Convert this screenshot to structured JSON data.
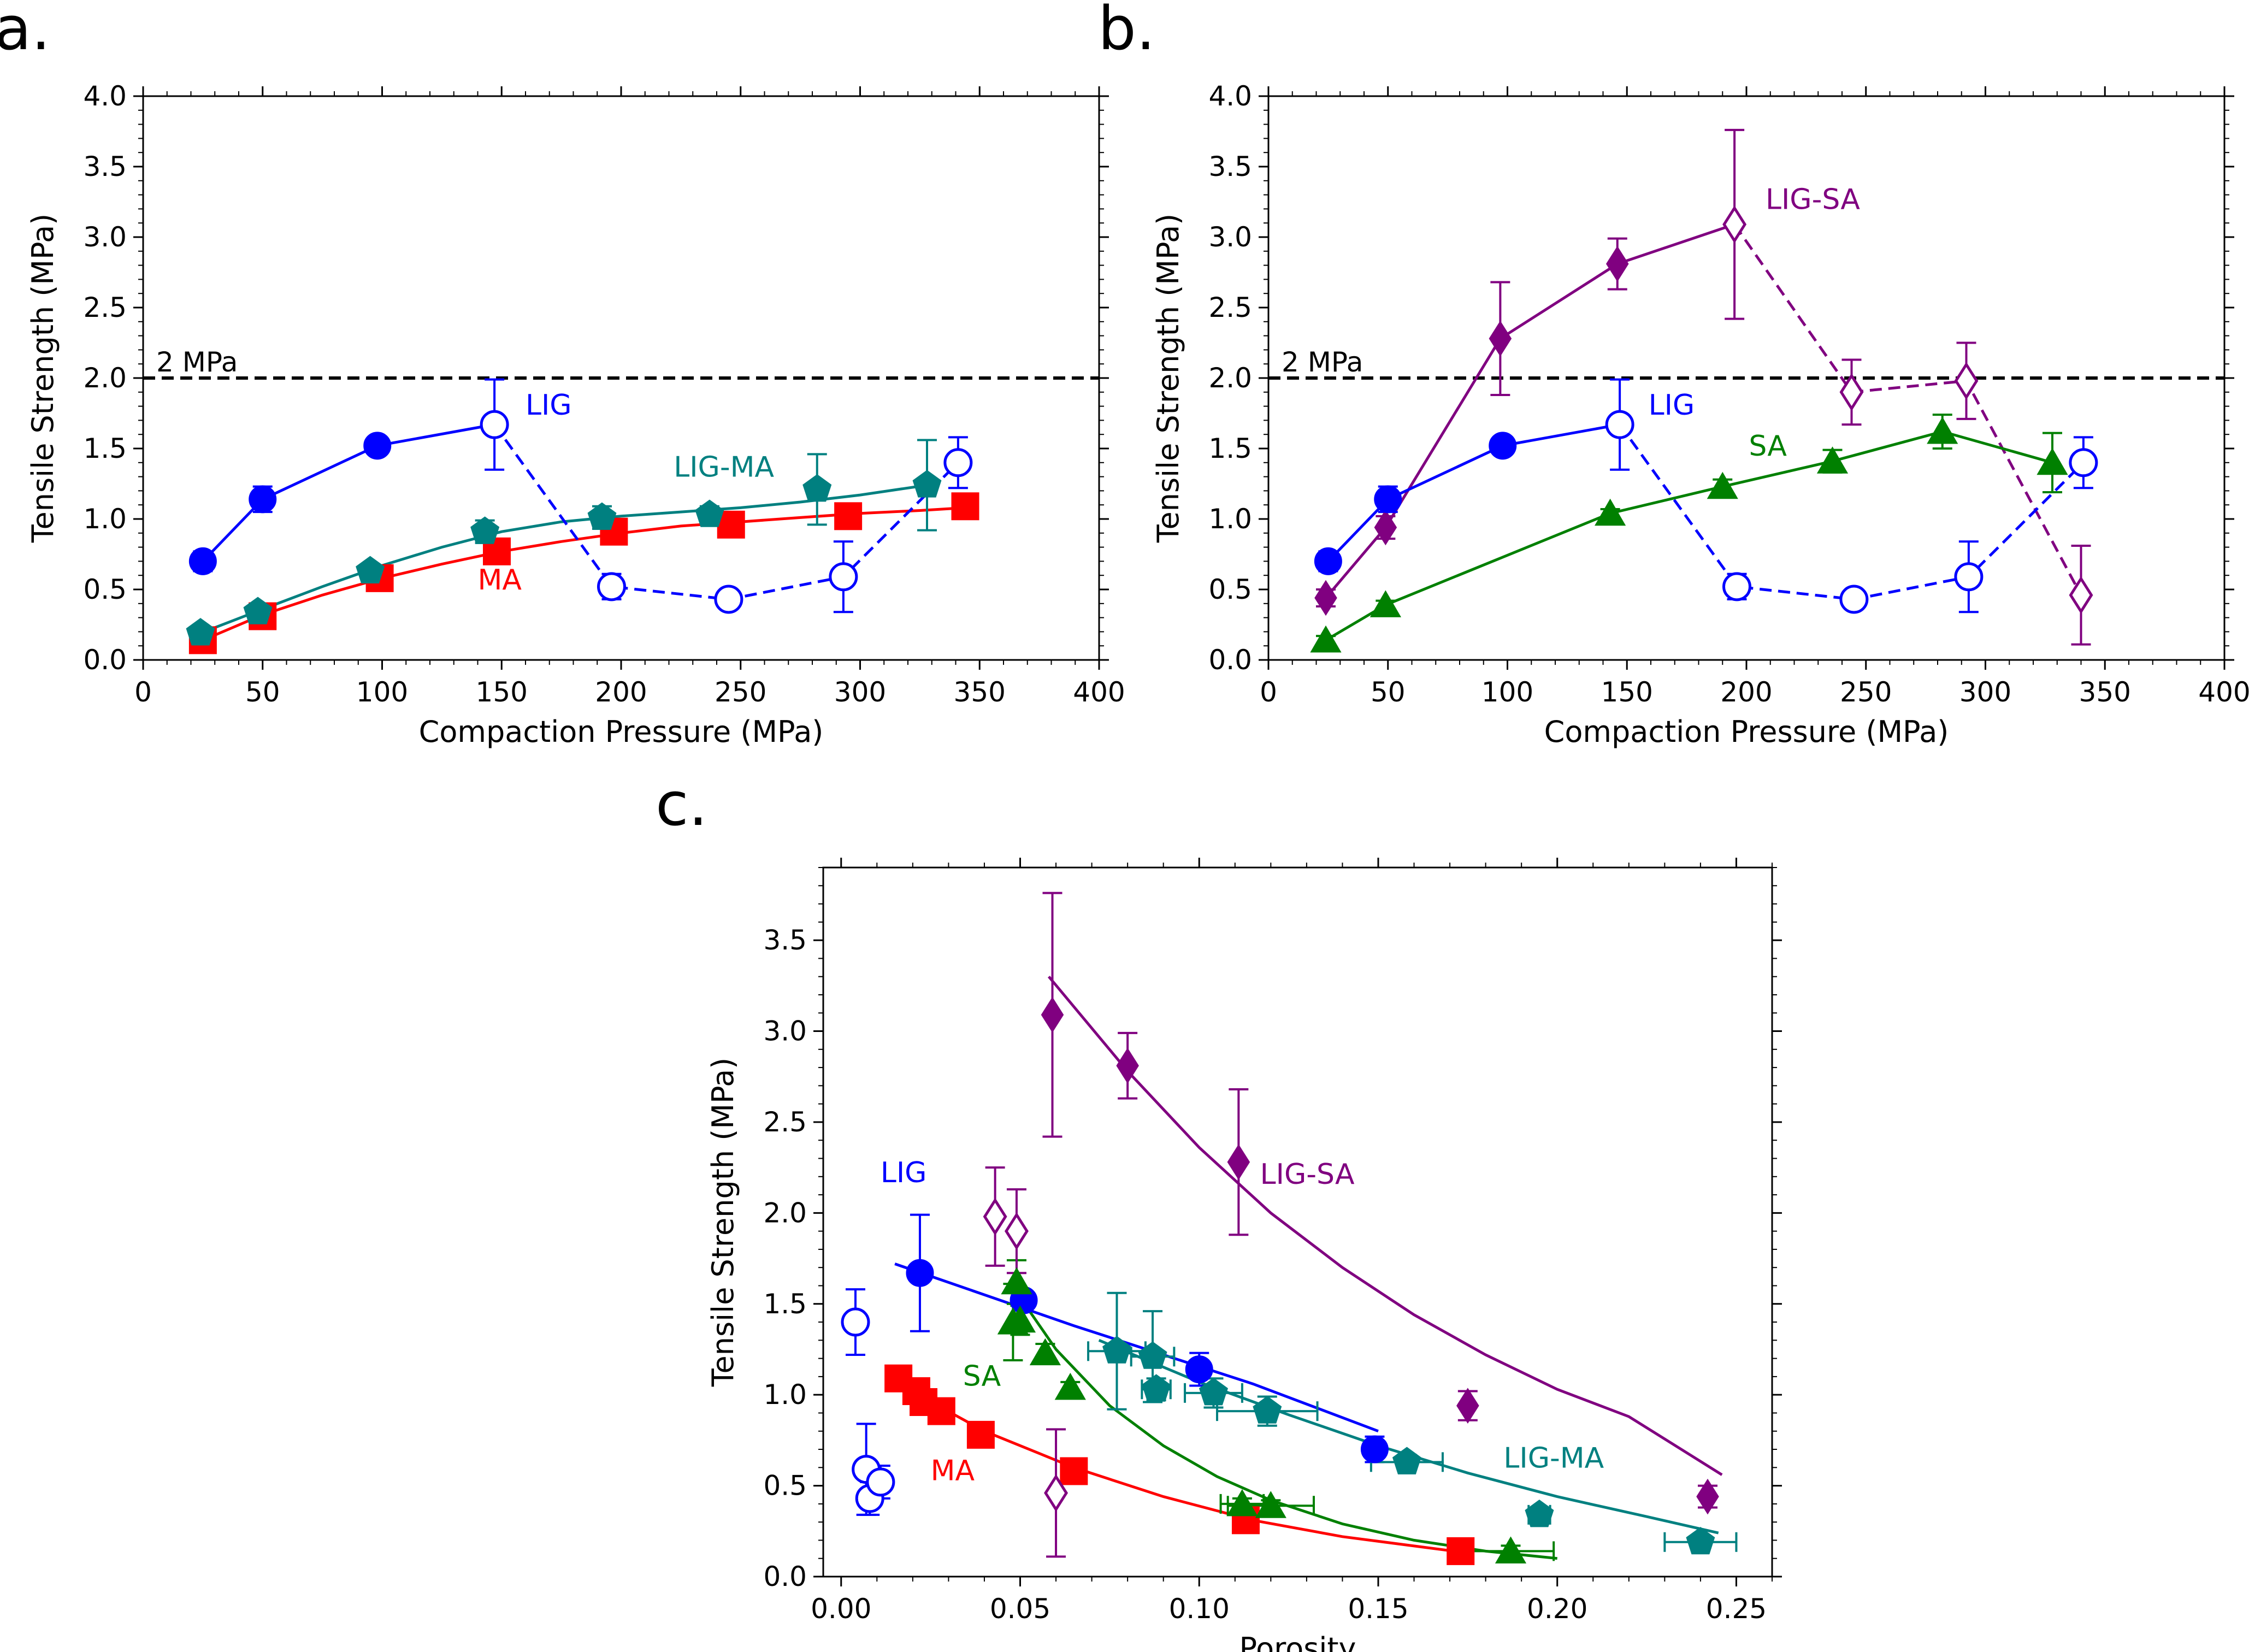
{
  "panel_labels": {
    "a": "a.",
    "b": "b.",
    "c": "c."
  },
  "colors": {
    "LIG": "#0000ff",
    "MA": "#ff0000",
    "LIG-MA": "#008080",
    "SA": "#008000",
    "LIG-SA": "#800080",
    "reference": "#000000"
  },
  "chart_data": [
    {
      "panel": "a",
      "type": "line",
      "xlabel": "Compaction Pressure (MPa)",
      "ylabel": "Tensile Strength (MPa)",
      "xlim": [
        0,
        400
      ],
      "ylim": [
        0,
        4.0
      ],
      "xticks": [
        "0",
        "50",
        "100",
        "150",
        "200",
        "250",
        "300",
        "350",
        "400"
      ],
      "yticks": [
        "0.0",
        "0.5",
        "1.0",
        "1.5",
        "2.0",
        "2.5",
        "3.0",
        "3.5",
        "4.0"
      ],
      "reference_line": {
        "y": 2.0,
        "label": "2 MPa",
        "style": "dashed"
      },
      "series": [
        {
          "name": "LIG",
          "color": "#0000ff",
          "marker": "circle",
          "filled": true,
          "line": "solid",
          "x": [
            25,
            50,
            98,
            147
          ],
          "y": [
            0.7,
            1.14,
            1.52,
            1.67
          ],
          "err": [
            0.07,
            0.09,
            0.04,
            0.32
          ]
        },
        {
          "name": "LIG",
          "color": "#0000ff",
          "marker": "circle",
          "filled": false,
          "line": "dashed",
          "legend": false,
          "x": [
            147,
            196,
            245,
            293,
            341
          ],
          "y": [
            1.67,
            0.52,
            0.43,
            0.59,
            1.4
          ],
          "err": [
            0,
            0.09,
            0.03,
            0.25,
            0.18
          ]
        },
        {
          "name": "MA",
          "color": "#ff0000",
          "marker": "square",
          "filled": true,
          "line": "fit",
          "x": [
            25,
            50,
            99,
            148,
            197,
            246,
            295,
            344
          ],
          "y": [
            0.14,
            0.31,
            0.58,
            0.77,
            0.91,
            0.96,
            1.02,
            1.09
          ],
          "err": [
            0.03,
            0.03,
            0.03,
            0.03,
            0.03,
            0.03,
            0.03,
            0.03
          ],
          "fit": {
            "x": [
              25,
              50,
              75,
              100,
              125,
              150,
              175,
              200,
              225,
              250,
              275,
              300,
              325,
              344
            ],
            "y": [
              0.14,
              0.32,
              0.46,
              0.58,
              0.68,
              0.77,
              0.84,
              0.9,
              0.95,
              0.98,
              1.01,
              1.04,
              1.06,
              1.08
            ]
          }
        },
        {
          "name": "LIG-MA",
          "color": "#008080",
          "marker": "pentagon",
          "filled": true,
          "line": "fit",
          "x": [
            24,
            48,
            95,
            143,
            192,
            237,
            282,
            328
          ],
          "y": [
            0.19,
            0.34,
            0.63,
            0.91,
            1.01,
            1.03,
            1.21,
            1.24
          ],
          "err": [
            0.03,
            0.03,
            0.04,
            0.08,
            0.08,
            0.06,
            0.25,
            0.32
          ],
          "fit": {
            "x": [
              24,
              50,
              75,
              100,
              125,
              150,
              175,
              200,
              225,
              250,
              275,
              300,
              328
            ],
            "y": [
              0.19,
              0.36,
              0.52,
              0.67,
              0.8,
              0.91,
              0.98,
              1.02,
              1.05,
              1.08,
              1.12,
              1.17,
              1.24
            ]
          }
        }
      ],
      "annotations": [
        {
          "text": "LIG",
          "x": 160,
          "y": 1.74,
          "color": "#0000ff"
        },
        {
          "text": "LIG-MA",
          "x": 222,
          "y": 1.3,
          "color": "#008080"
        },
        {
          "text": "MA",
          "x": 140,
          "y": 0.5,
          "color": "#ff0000"
        }
      ]
    },
    {
      "panel": "b",
      "type": "line",
      "xlabel": "Compaction Pressure (MPa)",
      "ylabel": "Tensile Strength (MPa)",
      "xlim": [
        0,
        400
      ],
      "ylim": [
        0,
        4.0
      ],
      "xticks": [
        "0",
        "50",
        "100",
        "150",
        "200",
        "250",
        "300",
        "350",
        "400"
      ],
      "yticks": [
        "0.0",
        "0.5",
        "1.0",
        "1.5",
        "2.0",
        "2.5",
        "3.0",
        "3.5",
        "4.0"
      ],
      "reference_line": {
        "y": 2.0,
        "label": "2 MPa",
        "style": "dashed"
      },
      "series": [
        {
          "name": "LIG-SA",
          "color": "#800080",
          "marker": "diamond",
          "filled": true,
          "line": "solid",
          "x": [
            24,
            49,
            97,
            146,
            195
          ],
          "y": [
            0.44,
            0.94,
            2.28,
            2.81,
            3.09
          ],
          "err": [
            0.06,
            0.08,
            0.4,
            0.18,
            0.67
          ]
        },
        {
          "name": "LIG-SA",
          "color": "#800080",
          "marker": "diamond",
          "filled": false,
          "line": "dashed",
          "legend": false,
          "x": [
            195,
            244,
            292,
            340
          ],
          "y": [
            3.09,
            1.9,
            1.98,
            0.46
          ],
          "err": [
            0,
            0.23,
            0.27,
            0.35
          ]
        },
        {
          "name": "LIG",
          "color": "#0000ff",
          "marker": "circle",
          "filled": true,
          "line": "solid",
          "x": [
            25,
            50,
            98,
            147
          ],
          "y": [
            0.7,
            1.14,
            1.52,
            1.67
          ],
          "err": [
            0.07,
            0.09,
            0.04,
            0.32
          ]
        },
        {
          "name": "LIG",
          "color": "#0000ff",
          "marker": "circle",
          "filled": false,
          "line": "dashed",
          "legend": false,
          "x": [
            147,
            196,
            245,
            293,
            341
          ],
          "y": [
            1.67,
            0.52,
            0.43,
            0.59,
            1.4
          ],
          "err": [
            0,
            0.09,
            0.03,
            0.25,
            0.18
          ]
        },
        {
          "name": "SA",
          "color": "#008000",
          "marker": "triangle",
          "filled": true,
          "line": "solid",
          "x": [
            24,
            49,
            143,
            190,
            236,
            282,
            328
          ],
          "y": [
            0.14,
            0.39,
            1.04,
            1.23,
            1.41,
            1.62,
            1.4
          ],
          "err": [
            0.03,
            0.03,
            0.03,
            0.05,
            0.08,
            0.12,
            0.21
          ]
        }
      ],
      "annotations": [
        {
          "text": "LIG-SA",
          "x": 208,
          "y": 3.2,
          "color": "#800080"
        },
        {
          "text": "LIG",
          "x": 159,
          "y": 1.74,
          "color": "#0000ff"
        },
        {
          "text": "SA",
          "x": 201,
          "y": 1.45,
          "color": "#008000"
        }
      ]
    },
    {
      "panel": "c",
      "type": "scatter",
      "xlabel": "Porosity",
      "ylabel": "Tensile Strength (MPa)",
      "xlim": [
        -0.005,
        0.26
      ],
      "ylim": [
        0,
        3.9
      ],
      "xticks": [
        "0.00",
        "0.05",
        "0.10",
        "0.15",
        "0.20",
        "0.25"
      ],
      "yticks": [
        "0.0",
        "0.5",
        "1.0",
        "1.5",
        "2.0",
        "2.5",
        "3.0",
        "3.5"
      ],
      "series": [
        {
          "name": "LIG",
          "color": "#0000ff",
          "marker": "circle",
          "filled": true,
          "x": [
            0.022,
            0.051,
            0.1,
            0.149
          ],
          "y": [
            1.67,
            1.52,
            1.14,
            0.7
          ],
          "yerr": [
            0.32,
            0.04,
            0.09,
            0.07
          ],
          "xerr": [
            0,
            0,
            0,
            0
          ],
          "fit": {
            "x": [
              0.015,
              0.04,
              0.065,
              0.09,
              0.115,
              0.15
            ],
            "y": [
              1.72,
              1.55,
              1.38,
              1.22,
              1.06,
              0.8
            ]
          }
        },
        {
          "name": "LIG",
          "color": "#0000ff",
          "marker": "circle",
          "filled": false,
          "legend": false,
          "x": [
            0.004,
            0.007,
            0.008,
            0.011
          ],
          "y": [
            1.4,
            0.59,
            0.43,
            0.52
          ],
          "yerr": [
            0.18,
            0.25,
            0.09,
            0.09
          ],
          "xerr": [
            0,
            0,
            0,
            0
          ]
        },
        {
          "name": "MA",
          "color": "#ff0000",
          "marker": "square",
          "filled": true,
          "x": [
            0.016,
            0.021,
            0.023,
            0.028,
            0.039,
            0.065,
            0.113,
            0.173
          ],
          "y": [
            1.09,
            1.02,
            0.96,
            0.91,
            0.78,
            0.58,
            0.31,
            0.14
          ],
          "yerr": [
            0.03,
            0.03,
            0.03,
            0.03,
            0.03,
            0.03,
            0.03,
            0.03
          ],
          "xerr": [
            0,
            0,
            0,
            0,
            0,
            0,
            0,
            0
          ],
          "fit": {
            "x": [
              0.015,
              0.04,
              0.065,
              0.09,
              0.115,
              0.14,
              0.175
            ],
            "y": [
              1.07,
              0.8,
              0.6,
              0.44,
              0.31,
              0.22,
              0.13
            ]
          }
        },
        {
          "name": "LIG-MA",
          "color": "#008080",
          "marker": "pentagon",
          "filled": true,
          "x": [
            0.077,
            0.087,
            0.088,
            0.104,
            0.119,
            0.158,
            0.195,
            0.24
          ],
          "y": [
            1.24,
            1.21,
            1.03,
            1.01,
            0.91,
            0.63,
            0.34,
            0.19
          ],
          "yerr": [
            0.32,
            0.25,
            0.06,
            0.08,
            0.08,
            0.04,
            0.03,
            0.03
          ],
          "xerr": [
            0.008,
            0.006,
            0.004,
            0.008,
            0.014,
            0.01,
            0.003,
            0.01
          ],
          "fit": {
            "x": [
              0.072,
              0.1,
              0.125,
              0.15,
              0.175,
              0.2,
              0.225,
              0.245
            ],
            "y": [
              1.3,
              1.07,
              0.89,
              0.72,
              0.57,
              0.44,
              0.33,
              0.24
            ]
          }
        },
        {
          "name": "SA",
          "color": "#008000",
          "marker": "triangle",
          "filled": true,
          "x": [
            0.048,
            0.049,
            0.05,
            0.057,
            0.064,
            0.112,
            0.12,
            0.187
          ],
          "y": [
            1.4,
            1.62,
            1.41,
            1.23,
            1.04,
            0.4,
            0.39,
            0.14
          ],
          "yerr": [
            0.21,
            0.12,
            0.08,
            0.05,
            0.03,
            0.03,
            0.03,
            0.03
          ],
          "xerr": [
            0,
            0,
            0,
            0,
            0,
            0.006,
            0.012,
            0.012
          ],
          "fit": {
            "x": [
              0.047,
              0.06,
              0.075,
              0.09,
              0.105,
              0.12,
              0.14,
              0.16,
              0.18,
              0.2
            ],
            "y": [
              1.62,
              1.25,
              0.94,
              0.72,
              0.55,
              0.42,
              0.29,
              0.2,
              0.14,
              0.1
            ]
          }
        },
        {
          "name": "LIG-SA",
          "color": "#800080",
          "marker": "diamond",
          "filled": true,
          "x": [
            0.059,
            0.08,
            0.111,
            0.175,
            0.242
          ],
          "y": [
            3.09,
            2.81,
            2.28,
            0.94,
            0.44
          ],
          "yerr": [
            0.67,
            0.18,
            0.4,
            0.08,
            0.06
          ],
          "xerr": [
            0,
            0,
            0,
            0,
            0
          ],
          "fit": {
            "x": [
              0.058,
              0.08,
              0.1,
              0.12,
              0.14,
              0.16,
              0.18,
              0.2,
              0.22,
              0.246
            ],
            "y": [
              3.3,
              2.78,
              2.36,
              2.0,
              1.7,
              1.44,
              1.22,
              1.03,
              0.88,
              0.56
            ]
          }
        },
        {
          "name": "LIG-SA",
          "color": "#800080",
          "marker": "diamond",
          "filled": false,
          "legend": false,
          "x": [
            0.043,
            0.049,
            0.06
          ],
          "y": [
            1.98,
            1.9,
            0.46
          ],
          "yerr": [
            0.27,
            0.23,
            0.35
          ],
          "xerr": [
            0,
            0,
            0
          ]
        }
      ],
      "annotations": [
        {
          "text": "LIG",
          "x": 0.011,
          "y": 2.17,
          "color": "#0000ff"
        },
        {
          "text": "LIG-SA",
          "x": 0.117,
          "y": 2.16,
          "color": "#800080"
        },
        {
          "text": "SA",
          "x": 0.034,
          "y": 1.05,
          "color": "#008000"
        },
        {
          "text": "LIG-MA",
          "x": 0.185,
          "y": 0.6,
          "color": "#008080"
        },
        {
          "text": "MA",
          "x": 0.025,
          "y": 0.53,
          "color": "#ff0000"
        }
      ]
    }
  ]
}
